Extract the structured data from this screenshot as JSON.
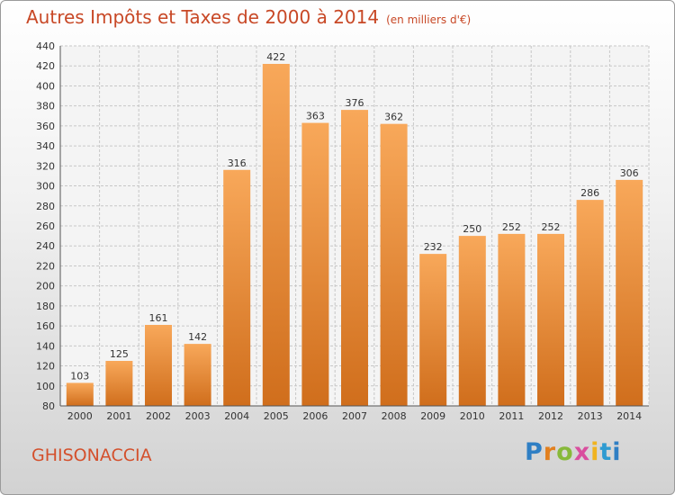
{
  "header": {
    "title": "Autres Impôts et Taxes de 2000 à 2014",
    "subtitle": "(en milliers d'€)"
  },
  "footer": {
    "commune": "GHISONACCIA",
    "logo_letters": [
      "P",
      "r",
      "o",
      "x",
      "i",
      "t",
      "i"
    ]
  },
  "chart_data": {
    "type": "bar",
    "title": "Autres Impôts et Taxes de 2000 à 2014",
    "subtitle": "(en milliers d'€)",
    "xlabel": "",
    "ylabel": "",
    "categories": [
      "2000",
      "2001",
      "2002",
      "2003",
      "2004",
      "2005",
      "2006",
      "2007",
      "2008",
      "2009",
      "2010",
      "2011",
      "2012",
      "2013",
      "2014"
    ],
    "values": [
      103,
      125,
      161,
      142,
      316,
      422,
      363,
      376,
      362,
      232,
      250,
      252,
      252,
      286,
      306
    ],
    "ylim": [
      80,
      440
    ],
    "yticks": [
      80,
      100,
      120,
      140,
      160,
      180,
      200,
      220,
      240,
      260,
      280,
      300,
      320,
      340,
      360,
      380,
      400,
      420,
      440
    ],
    "grid": true,
    "data_labels": true,
    "colors": {
      "bar_top": "#f8a85a",
      "bar_bottom": "#d06e1c",
      "grid": "#c7c7c7",
      "axis": "#555555",
      "text": "#333333"
    }
  }
}
